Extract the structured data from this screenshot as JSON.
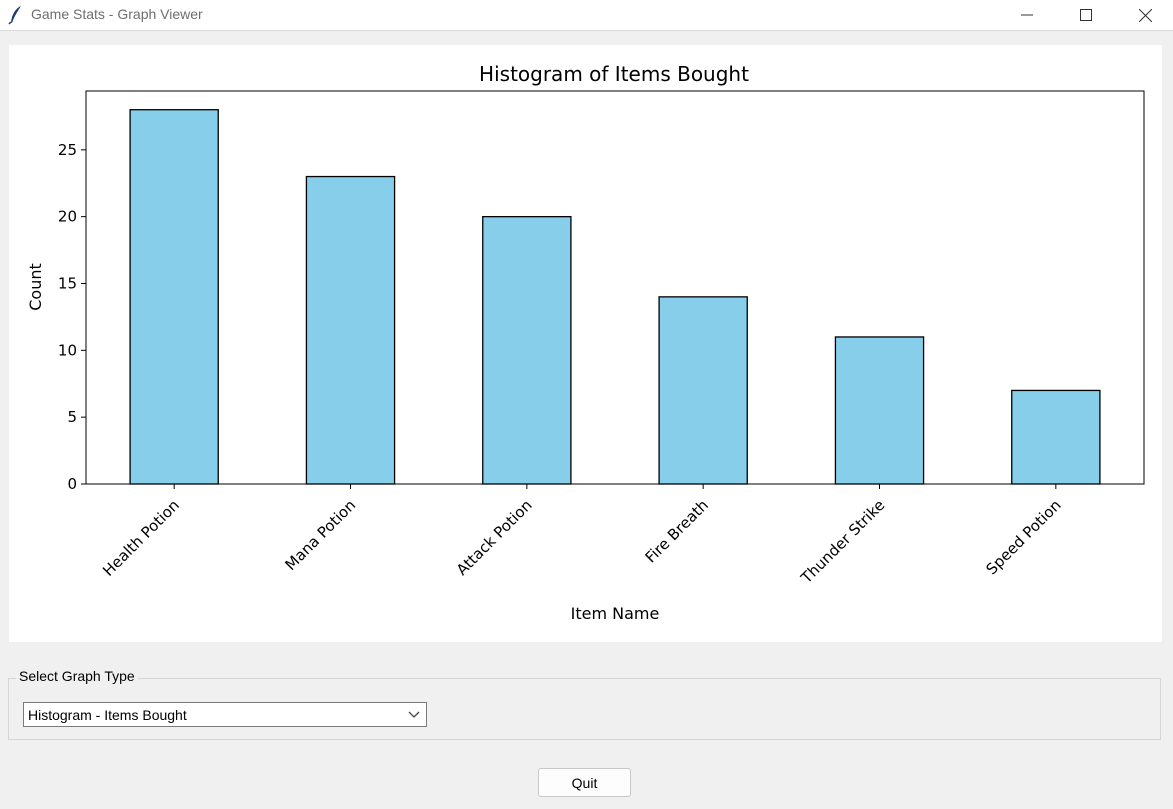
{
  "window": {
    "title": "Game Stats - Graph Viewer",
    "icon": "feather-icon"
  },
  "controls": {
    "group_label": "Select Graph Type",
    "selected_graph": "Histogram - Items Bought",
    "quit_label": "Quit"
  },
  "chart_data": {
    "type": "bar",
    "title": "Histogram of Items Bought",
    "xlabel": "Item Name",
    "ylabel": "Count",
    "categories": [
      "Health Potion",
      "Mana Potion",
      "Attack Potion",
      "Fire Breath",
      "Thunder Strike",
      "Speed Potion"
    ],
    "values": [
      28,
      23,
      20,
      14,
      11,
      7
    ],
    "ylim": [
      0,
      29.4
    ],
    "yticks": [
      0,
      5,
      10,
      15,
      20,
      25
    ],
    "bar_color": "#87ceeb",
    "edge_color": "#000000",
    "grid": false,
    "legend": "none"
  }
}
